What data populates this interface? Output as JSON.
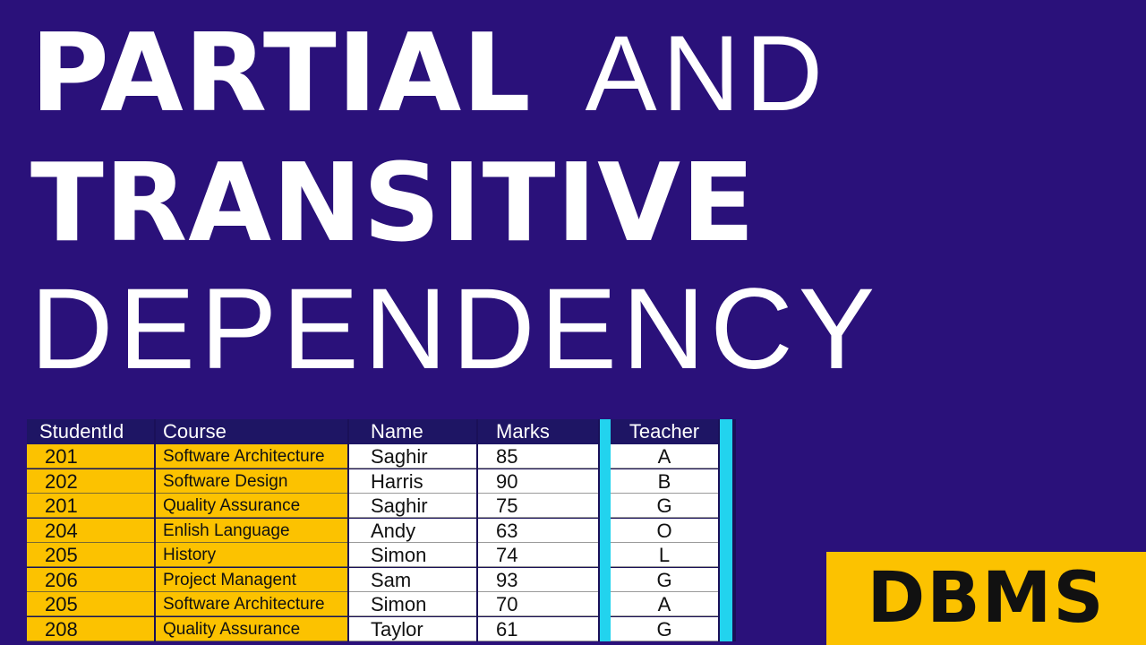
{
  "title": {
    "line1_bold": "PARTIAL",
    "line1_light": "AND",
    "line2": "TRANSITIVE",
    "line3": "DEPENDENCY"
  },
  "badge": "DBMS",
  "table": {
    "headers": [
      "StudentId",
      "Course",
      "Name",
      "Marks",
      "Teacher"
    ],
    "rows": [
      [
        "201",
        "Software Architecture",
        "Saghir",
        "85",
        "A"
      ],
      [
        "202",
        "Software Design",
        "Harris",
        "90",
        "B"
      ],
      [
        "201",
        "Quality Assurance",
        "Saghir",
        "75",
        "G"
      ],
      [
        "204",
        "Enlish Language",
        "Andy",
        "63",
        "O"
      ],
      [
        "205",
        "History",
        "Simon",
        "74",
        "L"
      ],
      [
        "206",
        "Project Managent",
        "Sam",
        "93",
        "G"
      ],
      [
        "205",
        "Software Architecture",
        "Simon",
        "70",
        "A"
      ],
      [
        "208",
        "Quality Assurance",
        "Taylor",
        "61",
        "G"
      ]
    ]
  },
  "colors": {
    "background": "#2a117a",
    "key_highlight": "#fcc200",
    "transitive_marker": "#22d3ee",
    "badge_bg": "#fcc200"
  }
}
